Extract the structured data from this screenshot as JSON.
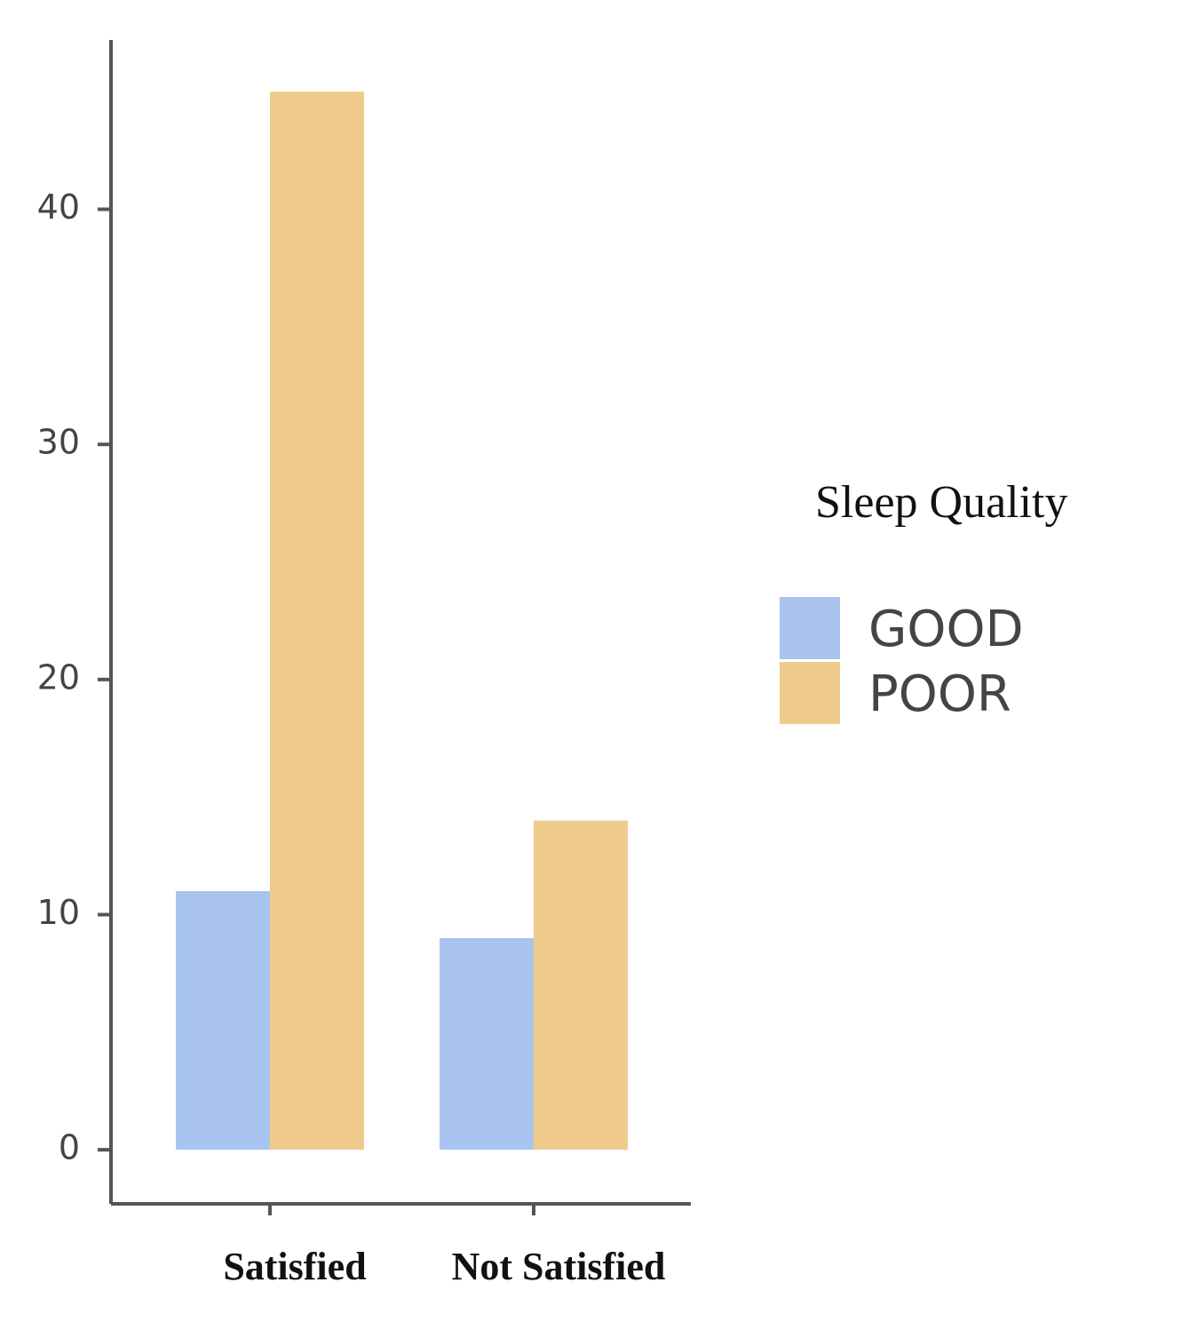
{
  "chart_data": {
    "type": "bar",
    "categories": [
      "Satisfied",
      "Not Satisfied"
    ],
    "series": [
      {
        "name": "GOOD",
        "color": "#a8c4ef",
        "values": [
          11,
          9
        ]
      },
      {
        "name": "POOR",
        "color": "#efcb8b",
        "values": [
          45,
          14
        ]
      }
    ],
    "legend_title": "Sleep Quality",
    "ylim": [
      -2.3,
      47.2
    ],
    "yticks": [
      0,
      10,
      20,
      30,
      40
    ],
    "grid": false
  }
}
